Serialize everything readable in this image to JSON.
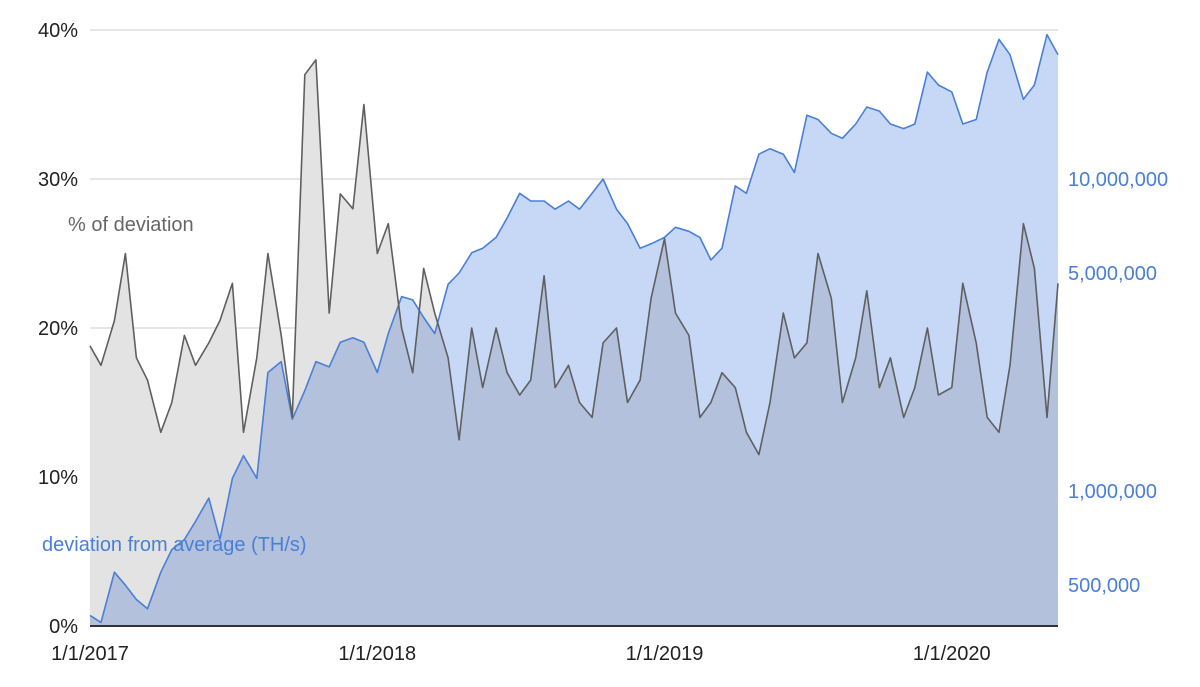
{
  "chart_data": {
    "type": "area",
    "title": "",
    "xlabel": "",
    "x_ticks": [
      "1/1/2017",
      "1/1/2018",
      "1/1/2019",
      "1/1/2020"
    ],
    "x_range": [
      "2017-01-01",
      "2020-05-15"
    ],
    "y_left": {
      "ticks": [
        "0%",
        "10%",
        "20%",
        "30%",
        "40%"
      ],
      "range": [
        0,
        40
      ],
      "unit": "%"
    },
    "y_right": {
      "scale": "log",
      "ticks": [
        "500,000",
        "1,000,000",
        "5,000,000",
        "10,000,000"
      ],
      "range": [
        370000,
        30000000
      ]
    },
    "grid": true,
    "colors": {
      "pct_line": "#5f5f5f",
      "pct_fill": "#e3e3e3",
      "ths_line": "#4a7fd6",
      "ths_fill": "#c6d8f6",
      "overlap_fill": "#b3c1dc",
      "grid": "#cccccc",
      "axis": "#333333"
    },
    "series": [
      {
        "name": "% of deviation",
        "axis": "left",
        "x": [
          "2017-01-01",
          "2017-01-15",
          "2017-02-01",
          "2017-02-15",
          "2017-03-01",
          "2017-03-15",
          "2017-04-01",
          "2017-04-15",
          "2017-05-01",
          "2017-05-15",
          "2017-06-01",
          "2017-06-15",
          "2017-07-01",
          "2017-07-15",
          "2017-08-01",
          "2017-08-15",
          "2017-09-01",
          "2017-09-15",
          "2017-10-01",
          "2017-10-15",
          "2017-11-01",
          "2017-11-15",
          "2017-12-01",
          "2017-12-15",
          "2018-01-01",
          "2018-01-15",
          "2018-02-01",
          "2018-02-15",
          "2018-03-01",
          "2018-03-15",
          "2018-04-01",
          "2018-04-15",
          "2018-05-01",
          "2018-05-15",
          "2018-06-01",
          "2018-06-15",
          "2018-07-01",
          "2018-07-15",
          "2018-08-01",
          "2018-08-15",
          "2018-09-01",
          "2018-09-15",
          "2018-10-01",
          "2018-10-15",
          "2018-11-01",
          "2018-11-15",
          "2018-12-01",
          "2018-12-15",
          "2019-01-01",
          "2019-01-15",
          "2019-02-01",
          "2019-02-15",
          "2019-03-01",
          "2019-03-15",
          "2019-04-01",
          "2019-04-15",
          "2019-05-01",
          "2019-05-15",
          "2019-06-01",
          "2019-06-15",
          "2019-07-01",
          "2019-07-15",
          "2019-08-01",
          "2019-08-15",
          "2019-09-01",
          "2019-09-15",
          "2019-10-01",
          "2019-10-15",
          "2019-11-01",
          "2019-11-15",
          "2019-12-01",
          "2019-12-15",
          "2020-01-01",
          "2020-01-15",
          "2020-02-01",
          "2020-02-15",
          "2020-03-01",
          "2020-03-15",
          "2020-04-01",
          "2020-04-15",
          "2020-05-01",
          "2020-05-15"
        ],
        "values": [
          18.8,
          17.5,
          20.5,
          25.0,
          18.0,
          16.5,
          13.0,
          15.0,
          19.5,
          17.5,
          19.0,
          20.5,
          23.0,
          13.0,
          18.0,
          25.0,
          19.5,
          14.0,
          37.0,
          38.0,
          21.0,
          29.0,
          28.0,
          35.0,
          25.0,
          27.0,
          20.0,
          17.0,
          24.0,
          21.0,
          18.0,
          12.5,
          20.0,
          16.0,
          20.0,
          17.0,
          15.5,
          16.5,
          23.5,
          16.0,
          17.5,
          15.0,
          14.0,
          19.0,
          20.0,
          15.0,
          16.5,
          22.0,
          26.0,
          21.0,
          19.5,
          14.0,
          15.0,
          17.0,
          16.0,
          13.0,
          11.5,
          15.0,
          21.0,
          18.0,
          19.0,
          25.0,
          22.0,
          15.0,
          18.0,
          22.5,
          16.0,
          18.0,
          14.0,
          16.0,
          20.0,
          15.5,
          16.0,
          23.0,
          19.0,
          14.0,
          13.0,
          17.5,
          27.0,
          24.0,
          14.0,
          23.0
        ]
      },
      {
        "name": "deviation from average (TH/s)",
        "axis": "right",
        "x": [
          "2017-01-01",
          "2017-01-15",
          "2017-02-01",
          "2017-02-15",
          "2017-03-01",
          "2017-03-15",
          "2017-04-01",
          "2017-04-15",
          "2017-05-01",
          "2017-05-15",
          "2017-06-01",
          "2017-06-15",
          "2017-07-01",
          "2017-07-15",
          "2017-08-01",
          "2017-08-15",
          "2017-09-01",
          "2017-09-15",
          "2017-10-01",
          "2017-10-15",
          "2017-11-01",
          "2017-11-15",
          "2017-12-01",
          "2017-12-15",
          "2018-01-01",
          "2018-01-15",
          "2018-02-01",
          "2018-02-15",
          "2018-03-01",
          "2018-03-15",
          "2018-04-01",
          "2018-04-15",
          "2018-05-01",
          "2018-05-15",
          "2018-06-01",
          "2018-06-15",
          "2018-07-01",
          "2018-07-15",
          "2018-08-01",
          "2018-08-15",
          "2018-09-01",
          "2018-09-15",
          "2018-10-01",
          "2018-10-15",
          "2018-11-01",
          "2018-11-15",
          "2018-12-01",
          "2018-12-15",
          "2019-01-01",
          "2019-01-15",
          "2019-02-01",
          "2019-02-15",
          "2019-03-01",
          "2019-03-15",
          "2019-04-01",
          "2019-04-15",
          "2019-05-01",
          "2019-05-15",
          "2019-06-01",
          "2019-06-15",
          "2019-07-01",
          "2019-07-15",
          "2019-08-01",
          "2019-08-15",
          "2019-09-01",
          "2019-09-15",
          "2019-10-01",
          "2019-10-15",
          "2019-11-01",
          "2019-11-15",
          "2019-12-01",
          "2019-12-15",
          "2020-01-01",
          "2020-01-15",
          "2020-02-01",
          "2020-02-15",
          "2020-03-01",
          "2020-03-15",
          "2020-04-01",
          "2020-04-15",
          "2020-05-01",
          "2020-05-15"
        ],
        "values": [
          400000,
          380000,
          550000,
          500000,
          450000,
          420000,
          550000,
          650000,
          700000,
          800000,
          950000,
          700000,
          1100000,
          1300000,
          1100000,
          2400000,
          2600000,
          1700000,
          2100000,
          2600000,
          2500000,
          3000000,
          3100000,
          3000000,
          2400000,
          3200000,
          4200000,
          4100000,
          3600000,
          3200000,
          4600000,
          5000000,
          5800000,
          6000000,
          6500000,
          7500000,
          9000000,
          8500000,
          8500000,
          8000000,
          8500000,
          8000000,
          9000000,
          10000000,
          8000000,
          7200000,
          6000000,
          6200000,
          6500000,
          7000000,
          6800000,
          6500000,
          5500000,
          6000000,
          9500000,
          9000000,
          12000000,
          12500000,
          12000000,
          10500000,
          16000000,
          15500000,
          14000000,
          13500000,
          15000000,
          17000000,
          16500000,
          15000000,
          14500000,
          15000000,
          22000000,
          20000000,
          19000000,
          15000000,
          15500000,
          22000000,
          28000000,
          25000000,
          18000000,
          20000000,
          29000000,
          25000000
        ]
      }
    ]
  }
}
